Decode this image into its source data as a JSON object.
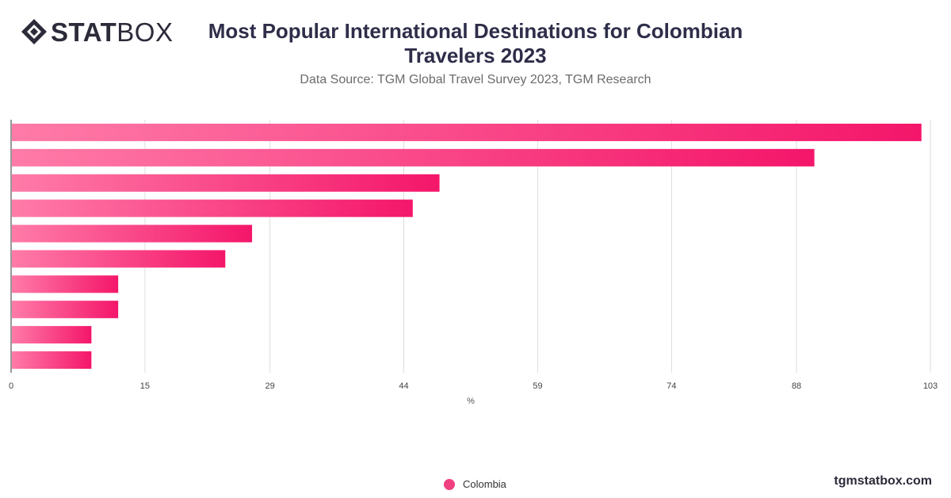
{
  "logo": {
    "bold": "STAT",
    "light": "BOX"
  },
  "title_line1": "Most Popular International Destinations for Colombian",
  "title_line2": "Travelers 2023",
  "subtitle": "Data Source: TGM Global Travel Survey 2023, TGM Research",
  "footer_site": "tgmstatbox.com",
  "colors": {
    "bar_start": "#ff7ba8",
    "bar_end": "#f4166a",
    "legend": "#f0407f",
    "grid": "#dddddd",
    "axis": "#333333"
  },
  "chart_data": {
    "type": "bar",
    "orientation": "horizontal",
    "title": "Most Popular International Destinations for Colombian Travelers 2023",
    "subtitle": "Data Source: TGM Global Travel Survey 2023, TGM Research",
    "xlabel": "%",
    "ylabel": "",
    "xlim": [
      0,
      103
    ],
    "xticks": [
      "0",
      "15",
      "29",
      "44",
      "59",
      "74",
      "88",
      "103"
    ],
    "grid": true,
    "legend_position": "bottom-center",
    "series": [
      {
        "name": "Colombia",
        "values": [
          102,
          90,
          48,
          45,
          27,
          24,
          12,
          12,
          9,
          9
        ]
      }
    ]
  }
}
